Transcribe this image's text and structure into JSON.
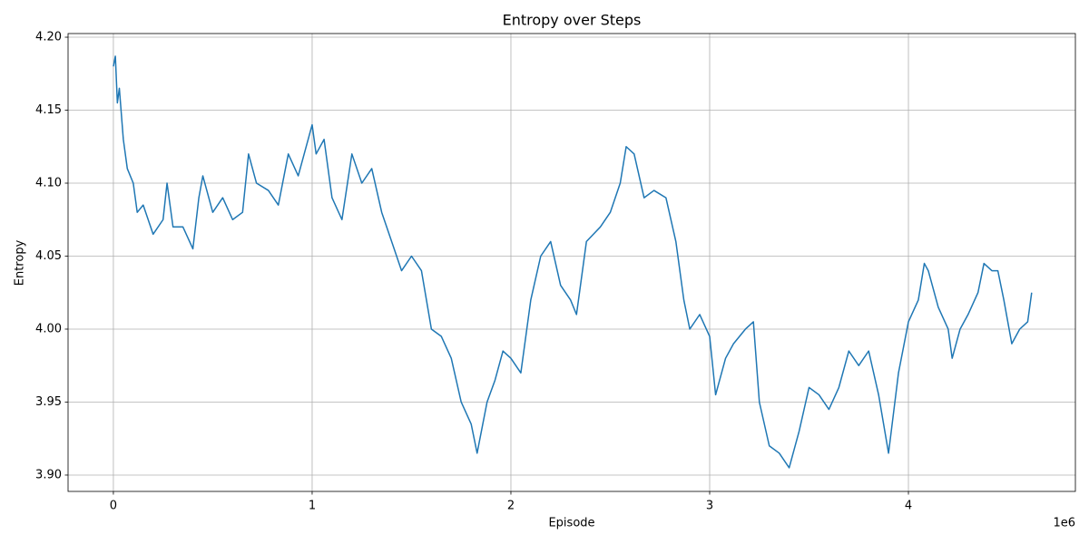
{
  "chart_data": {
    "type": "line",
    "title": "Entropy over Steps",
    "x_label": "Episode",
    "y_label": "Entropy",
    "x_offset_label": "1e6",
    "color": "#1f77b4",
    "grid": true,
    "xlim": [
      -0.228,
      4.84
    ],
    "ylim": [
      3.8888,
      4.2025
    ],
    "xticks": [
      0,
      1,
      2,
      3,
      4
    ],
    "yticks": [
      {
        "value": 3.9,
        "label": "3.90"
      },
      3.95,
      {
        "value": 4.0,
        "label": "4.00"
      },
      4.05,
      {
        "value": 4.1,
        "label": "4.10"
      },
      4.15,
      {
        "value": 4.2,
        "label": "4.20"
      }
    ],
    "x": [
      0,
      0.01,
      0.02,
      0.03,
      0.05,
      0.07,
      0.1,
      0.12,
      0.15,
      0.2,
      0.25,
      0.27,
      0.3,
      0.35,
      0.4,
      0.43,
      0.45,
      0.5,
      0.55,
      0.6,
      0.65,
      0.68,
      0.72,
      0.78,
      0.83,
      0.88,
      0.93,
      1.0,
      1.02,
      1.06,
      1.1,
      1.15,
      1.2,
      1.25,
      1.3,
      1.35,
      1.4,
      1.45,
      1.5,
      1.55,
      1.6,
      1.65,
      1.7,
      1.75,
      1.8,
      1.83,
      1.88,
      1.92,
      1.96,
      2.0,
      2.05,
      2.1,
      2.15,
      2.2,
      2.25,
      2.3,
      2.33,
      2.38,
      2.45,
      2.5,
      2.55,
      2.58,
      2.62,
      2.67,
      2.72,
      2.78,
      2.83,
      2.87,
      2.9,
      2.95,
      3.0,
      3.03,
      3.08,
      3.12,
      3.18,
      3.22,
      3.25,
      3.3,
      3.35,
      3.4,
      3.45,
      3.5,
      3.55,
      3.6,
      3.65,
      3.7,
      3.75,
      3.8,
      3.85,
      3.9,
      3.95,
      4.0,
      4.05,
      4.08,
      4.1,
      4.15,
      4.2,
      4.22,
      4.26,
      4.3,
      4.35,
      4.38,
      4.42,
      4.45,
      4.48,
      4.52,
      4.56,
      4.6,
      4.62
    ],
    "values": [
      4.18,
      4.187,
      4.155,
      4.165,
      4.13,
      4.11,
      4.1,
      4.08,
      4.085,
      4.065,
      4.075,
      4.1,
      4.07,
      4.07,
      4.055,
      4.09,
      4.105,
      4.08,
      4.09,
      4.075,
      4.08,
      4.12,
      4.1,
      4.095,
      4.085,
      4.12,
      4.105,
      4.14,
      4.12,
      4.13,
      4.09,
      4.075,
      4.12,
      4.1,
      4.11,
      4.08,
      4.06,
      4.04,
      4.05,
      4.04,
      4.0,
      3.995,
      3.98,
      3.95,
      3.935,
      3.915,
      3.95,
      3.965,
      3.985,
      3.98,
      3.97,
      4.02,
      4.05,
      4.06,
      4.03,
      4.02,
      4.01,
      4.06,
      4.07,
      4.08,
      4.1,
      4.125,
      4.12,
      4.09,
      4.095,
      4.09,
      4.06,
      4.02,
      4.0,
      4.01,
      3.995,
      3.955,
      3.98,
      3.99,
      4.0,
      4.005,
      3.95,
      3.92,
      3.915,
      3.905,
      3.93,
      3.96,
      3.955,
      3.945,
      3.96,
      3.985,
      3.975,
      3.985,
      3.955,
      3.915,
      3.97,
      4.005,
      4.02,
      4.045,
      4.04,
      4.015,
      4.0,
      3.98,
      4.0,
      4.01,
      4.025,
      4.045,
      4.04,
      4.04,
      4.02,
      3.99,
      4.0,
      4.005,
      4.025
    ]
  }
}
